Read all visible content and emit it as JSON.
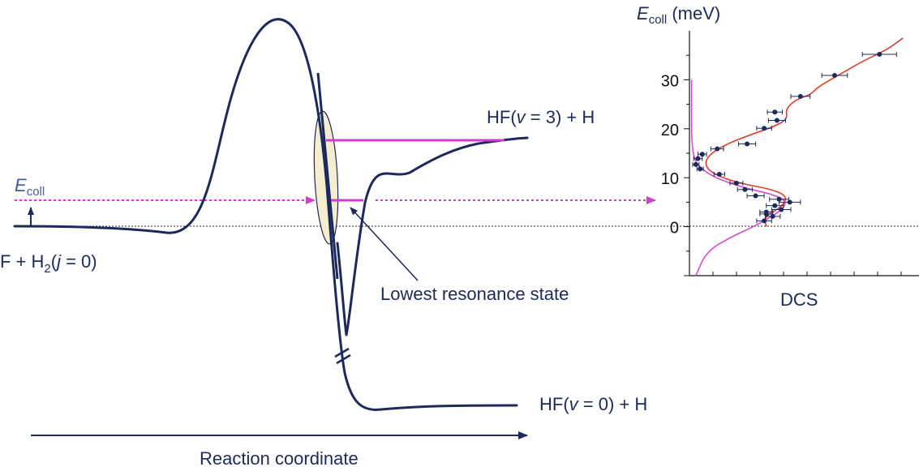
{
  "labels": {
    "reactant": "F + H",
    "reactant_sub": "2",
    "reactant_tail_open": "(",
    "reactant_j": "j",
    "reactant_tail_close": " = 0)",
    "product_v3_pre": "HF(",
    "product_v3_v": "v",
    "product_v3_post": " = 3) + H",
    "product_v0_pre": "HF(",
    "product_v0_v": "v",
    "product_v0_post": " = 0) + H",
    "resonance": "Lowest resonance state",
    "x_axis": "Reaction coordinate",
    "ecoll_main": "E",
    "ecoll_sub": "coll"
  },
  "chart_data": {
    "type": "scatter",
    "ylabel_main": "E",
    "ylabel_sub": "coll",
    "ylabel_unit": " (meV)",
    "xlabel": "DCS",
    "ylim": [
      -10,
      40
    ],
    "yticks": [
      0,
      10,
      20,
      30
    ],
    "series": [
      {
        "points": [
          {
            "x": 0.35,
            "y": 1.2
          },
          {
            "x": 0.39,
            "y": 2.1
          },
          {
            "x": 0.36,
            "y": 2.6
          },
          {
            "x": 0.43,
            "y": 3.5
          },
          {
            "x": 0.4,
            "y": 4.3
          },
          {
            "x": 0.36,
            "y": 3.0
          },
          {
            "x": 0.47,
            "y": 5.0
          },
          {
            "x": 0.42,
            "y": 5.6
          },
          {
            "x": 0.31,
            "y": 6.3
          },
          {
            "x": 0.26,
            "y": 7.6
          },
          {
            "x": 0.22,
            "y": 8.9
          },
          {
            "x": 0.14,
            "y": 10.7
          },
          {
            "x": 0.05,
            "y": 11.8
          },
          {
            "x": 0.03,
            "y": 12.7
          },
          {
            "x": 0.04,
            "y": 13.9
          },
          {
            "x": 0.06,
            "y": 14.8
          },
          {
            "x": 0.13,
            "y": 15.9
          },
          {
            "x": 0.27,
            "y": 16.9
          },
          {
            "x": 0.35,
            "y": 20.1
          },
          {
            "x": 0.41,
            "y": 21.7
          },
          {
            "x": 0.4,
            "y": 23.4
          },
          {
            "x": 0.52,
            "y": 26.6
          },
          {
            "x": 0.68,
            "y": 30.9
          },
          {
            "x": 0.89,
            "y": 35.2
          }
        ],
        "x_err": [
          0.035,
          0.035,
          0.03,
          0.045,
          0.04,
          0.03,
          0.05,
          0.045,
          0.04,
          0.035,
          0.03,
          0.025,
          0.015,
          0.015,
          0.02,
          0.02,
          0.03,
          0.04,
          0.035,
          0.04,
          0.035,
          0.045,
          0.06,
          0.08
        ]
      }
    ],
    "fits": [
      {
        "name": "",
        "color": "#e03b2b"
      },
      {
        "name": "",
        "color": "#d84ad6"
      }
    ]
  },
  "colors": {
    "navy": "#1b2a5e",
    "magenta": "#d13ccf",
    "red_fit": "#e03b2b",
    "pink_fit": "#d84ad6",
    "ellipse_fill": "#f6edcf"
  }
}
